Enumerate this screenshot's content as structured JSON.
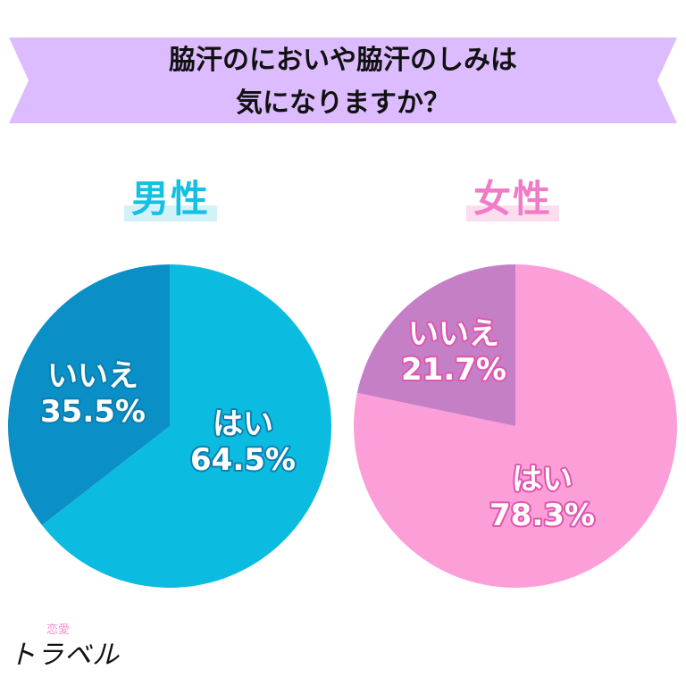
{
  "title": {
    "line1": "脇汗のにおいや脇汗のしみは",
    "line2": "気になりますか？"
  },
  "colors": {
    "banner": "#dcbcff",
    "male_yes": "#0cbce0",
    "male_no": "#0a8fc7",
    "female_yes": "#fc9ed8",
    "female_no": "#c57fc6",
    "male_text_outline": "#0a7fb0",
    "female_text_outline": "#e055ae"
  },
  "brand": {
    "small": "恋愛",
    "big": "トラベル"
  },
  "chart_data": [
    {
      "type": "pie",
      "title": "男性",
      "slices": [
        {
          "label": "はい",
          "value": 64.5,
          "display": "64.5%"
        },
        {
          "label": "いいえ",
          "value": 35.5,
          "display": "35.5%"
        }
      ]
    },
    {
      "type": "pie",
      "title": "女性",
      "slices": [
        {
          "label": "はい",
          "value": 78.3,
          "display": "78.3%"
        },
        {
          "label": "いいえ",
          "value": 21.7,
          "display": "21.7%"
        }
      ]
    }
  ]
}
